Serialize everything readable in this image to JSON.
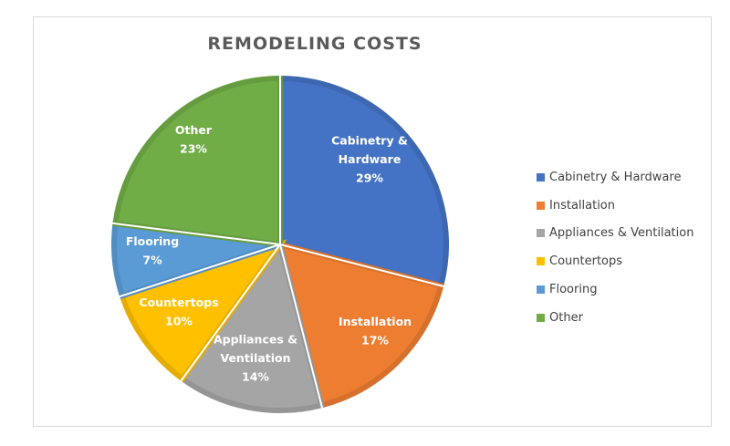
{
  "chart_data": {
    "type": "pie",
    "title": "REMODELING COSTS",
    "categories": [
      "Cabinetry & Hardware",
      "Installation",
      "Appliances & Ventilation",
      "Countertops",
      "Flooring",
      "Other"
    ],
    "values": [
      29,
      17,
      14,
      10,
      7,
      23
    ],
    "unit": "%",
    "colors": [
      "#4472c4",
      "#ed7d31",
      "#a5a5a5",
      "#ffc000",
      "#5b9bd5",
      "#70ad47"
    ],
    "data_labels": [
      {
        "lines": [
          "Cabinetry &",
          "Hardware",
          "29%"
        ]
      },
      {
        "lines": [
          "Installation",
          "17%"
        ]
      },
      {
        "lines": [
          "Appliances &",
          "Ventilation",
          "14%"
        ]
      },
      {
        "lines": [
          "Countertops",
          "10%"
        ]
      },
      {
        "lines": [
          "Flooring",
          "7%"
        ]
      },
      {
        "lines": [
          "Other",
          "23%"
        ]
      }
    ],
    "legend_position": "right",
    "start_angle_deg": 0
  },
  "legend": {
    "items": [
      {
        "label": "Cabinetry & Hardware",
        "color": "#4472c4"
      },
      {
        "label": "Installation",
        "color": "#ed7d31"
      },
      {
        "label": "Appliances & Ventilation",
        "color": "#a5a5a5"
      },
      {
        "label": "Countertops",
        "color": "#ffc000"
      },
      {
        "label": "Flooring",
        "color": "#5b9bd5"
      },
      {
        "label": "Other",
        "color": "#70ad47"
      }
    ]
  }
}
